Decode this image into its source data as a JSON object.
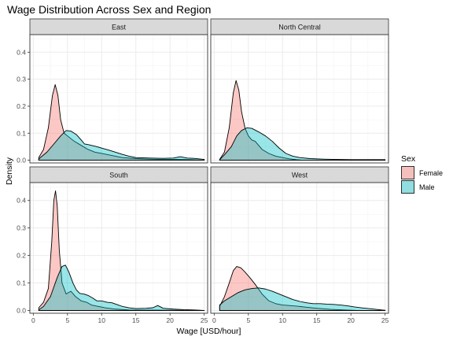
{
  "chart_data": {
    "type": "area",
    "subtype": "density",
    "title": "Wage Distribution Across Sex and Region",
    "xlabel": "Wage [USD/hour]",
    "ylabel": "Density",
    "xlim": [
      -0.5,
      25.5
    ],
    "ylim": [
      -0.01,
      0.465
    ],
    "x_ticks": [
      0,
      5,
      10,
      15,
      20,
      25
    ],
    "y_ticks": [
      0.0,
      0.1,
      0.2,
      0.3,
      0.4
    ],
    "y_tick_labels": [
      "0.0",
      "0.1",
      "0.2",
      "0.3",
      "0.4"
    ],
    "grid": true,
    "facet_layout": "2x2",
    "legend": {
      "title": "Sex",
      "position": "right",
      "entries": [
        {
          "name": "Female",
          "color": "#F8766D"
        },
        {
          "name": "Male",
          "color": "#00BFC4"
        }
      ]
    },
    "panels": [
      {
        "region": "East",
        "series": [
          {
            "name": "Female",
            "color": "#F8766D",
            "points": [
              [
                0.8,
                0.01
              ],
              [
                1.5,
                0.04
              ],
              [
                2.2,
                0.12
              ],
              [
                2.8,
                0.24
              ],
              [
                3.2,
                0.28
              ],
              [
                3.6,
                0.24
              ],
              [
                4.0,
                0.15
              ],
              [
                4.5,
                0.1
              ],
              [
                5.0,
                0.09
              ],
              [
                6.0,
                0.07
              ],
              [
                7.0,
                0.055
              ],
              [
                8.0,
                0.04
              ],
              [
                9.0,
                0.03
              ],
              [
                10.0,
                0.025
              ],
              [
                11.0,
                0.02
              ],
              [
                12.0,
                0.015
              ],
              [
                13.0,
                0.01
              ],
              [
                15.0,
                0.006
              ],
              [
                17.0,
                0.004
              ],
              [
                19.0,
                0.003
              ],
              [
                21.0,
                0.003
              ],
              [
                23.0,
                0.002
              ],
              [
                25.0,
                0.0
              ]
            ]
          },
          {
            "name": "Male",
            "color": "#00BFC4",
            "points": [
              [
                0.8,
                0.005
              ],
              [
                2.0,
                0.03
              ],
              [
                3.0,
                0.06
              ],
              [
                4.0,
                0.09
              ],
              [
                4.8,
                0.11
              ],
              [
                5.5,
                0.108
              ],
              [
                6.3,
                0.095
              ],
              [
                7.0,
                0.075
              ],
              [
                7.5,
                0.06
              ],
              [
                8.0,
                0.058
              ],
              [
                9.0,
                0.052
              ],
              [
                10.0,
                0.045
              ],
              [
                11.0,
                0.038
              ],
              [
                12.0,
                0.03
              ],
              [
                13.0,
                0.022
              ],
              [
                14.0,
                0.015
              ],
              [
                15.0,
                0.01
              ],
              [
                17.0,
                0.008
              ],
              [
                19.0,
                0.007
              ],
              [
                20.5,
                0.008
              ],
              [
                21.5,
                0.013
              ],
              [
                22.5,
                0.008
              ],
              [
                23.5,
                0.007
              ],
              [
                25.0,
                0.003
              ]
            ]
          }
        ]
      },
      {
        "region": "North Central",
        "series": [
          {
            "name": "Female",
            "color": "#F8766D",
            "points": [
              [
                0.8,
                0.003
              ],
              [
                1.5,
                0.03
              ],
              [
                2.2,
                0.12
              ],
              [
                2.8,
                0.25
              ],
              [
                3.2,
                0.295
              ],
              [
                3.6,
                0.26
              ],
              [
                4.0,
                0.18
              ],
              [
                4.5,
                0.12
              ],
              [
                5.0,
                0.09
              ],
              [
                5.5,
                0.075
              ],
              [
                6.0,
                0.07
              ],
              [
                6.5,
                0.055
              ],
              [
                7.0,
                0.04
              ],
              [
                8.0,
                0.025
              ],
              [
                9.0,
                0.015
              ],
              [
                10.0,
                0.01
              ],
              [
                11.0,
                0.005
              ],
              [
                12.0,
                0.002
              ],
              [
                13.0,
                0.0
              ],
              [
                16.0,
                0.0
              ],
              [
                25.0,
                0.0
              ]
            ]
          },
          {
            "name": "Male",
            "color": "#00BFC4",
            "points": [
              [
                0.8,
                0.002
              ],
              [
                1.5,
                0.02
              ],
              [
                2.5,
                0.05
              ],
              [
                3.3,
                0.09
              ],
              [
                4.0,
                0.11
              ],
              [
                4.8,
                0.12
              ],
              [
                5.5,
                0.118
              ],
              [
                6.5,
                0.105
              ],
              [
                7.5,
                0.09
              ],
              [
                8.5,
                0.07
              ],
              [
                9.5,
                0.045
              ],
              [
                10.5,
                0.025
              ],
              [
                11.5,
                0.015
              ],
              [
                12.5,
                0.01
              ],
              [
                14.0,
                0.006
              ],
              [
                16.0,
                0.004
              ],
              [
                18.0,
                0.003
              ],
              [
                20.0,
                0.002
              ],
              [
                22.0,
                0.002
              ],
              [
                24.0,
                0.002
              ],
              [
                25.0,
                0.002
              ]
            ]
          }
        ]
      },
      {
        "region": "South",
        "series": [
          {
            "name": "Female",
            "color": "#F8766D",
            "points": [
              [
                0.8,
                0.01
              ],
              [
                1.5,
                0.03
              ],
              [
                2.2,
                0.08
              ],
              [
                2.7,
                0.25
              ],
              [
                3.0,
                0.4
              ],
              [
                3.25,
                0.435
              ],
              [
                3.5,
                0.38
              ],
              [
                3.8,
                0.22
              ],
              [
                4.2,
                0.1
              ],
              [
                4.8,
                0.06
              ],
              [
                5.5,
                0.07
              ],
              [
                6.2,
                0.05
              ],
              [
                7.0,
                0.035
              ],
              [
                7.8,
                0.03
              ],
              [
                8.5,
                0.02
              ],
              [
                9.5,
                0.015
              ],
              [
                10.5,
                0.01
              ],
              [
                12.0,
                0.005
              ],
              [
                14.0,
                0.002
              ],
              [
                25.0,
                0.0
              ]
            ]
          },
          {
            "name": "Male",
            "color": "#00BFC4",
            "points": [
              [
                0.8,
                0.002
              ],
              [
                1.5,
                0.015
              ],
              [
                2.5,
                0.05
              ],
              [
                3.5,
                0.12
              ],
              [
                4.2,
                0.16
              ],
              [
                4.7,
                0.165
              ],
              [
                5.2,
                0.14
              ],
              [
                5.8,
                0.1
              ],
              [
                6.3,
                0.075
              ],
              [
                6.8,
                0.062
              ],
              [
                7.4,
                0.06
              ],
              [
                8.0,
                0.055
              ],
              [
                8.7,
                0.045
              ],
              [
                9.3,
                0.035
              ],
              [
                10.0,
                0.035
              ],
              [
                10.8,
                0.03
              ],
              [
                11.5,
                0.028
              ],
              [
                12.2,
                0.022
              ],
              [
                13.0,
                0.015
              ],
              [
                14.0,
                0.01
              ],
              [
                15.0,
                0.007
              ],
              [
                16.5,
                0.008
              ],
              [
                17.5,
                0.01
              ],
              [
                18.2,
                0.018
              ],
              [
                19.0,
                0.008
              ],
              [
                20.5,
                0.005
              ],
              [
                22.0,
                0.003
              ],
              [
                23.5,
                0.002
              ],
              [
                25.0,
                0.0
              ]
            ]
          }
        ]
      },
      {
        "region": "West",
        "series": [
          {
            "name": "Female",
            "color": "#F8766D",
            "points": [
              [
                0.8,
                0.015
              ],
              [
                1.5,
                0.05
              ],
              [
                2.2,
                0.1
              ],
              [
                2.8,
                0.145
              ],
              [
                3.3,
                0.16
              ],
              [
                3.9,
                0.155
              ],
              [
                4.5,
                0.14
              ],
              [
                5.2,
                0.12
              ],
              [
                6.0,
                0.095
              ],
              [
                7.0,
                0.06
              ],
              [
                8.0,
                0.035
              ],
              [
                9.0,
                0.025
              ],
              [
                10.0,
                0.02
              ],
              [
                11.0,
                0.018
              ],
              [
                12.0,
                0.016
              ],
              [
                13.5,
                0.012
              ],
              [
                15.0,
                0.008
              ],
              [
                17.0,
                0.004
              ],
              [
                19.0,
                0.002
              ],
              [
                21.0,
                0.0
              ],
              [
                25.0,
                0.0
              ]
            ]
          },
          {
            "name": "Male",
            "color": "#00BFC4",
            "points": [
              [
                0.8,
                0.02
              ],
              [
                1.5,
                0.035
              ],
              [
                2.5,
                0.05
              ],
              [
                3.5,
                0.065
              ],
              [
                4.5,
                0.075
              ],
              [
                5.5,
                0.08
              ],
              [
                6.5,
                0.082
              ],
              [
                7.5,
                0.078
              ],
              [
                8.5,
                0.07
              ],
              [
                9.5,
                0.06
              ],
              [
                10.5,
                0.05
              ],
              [
                11.5,
                0.04
              ],
              [
                12.5,
                0.033
              ],
              [
                13.5,
                0.028
              ],
              [
                14.5,
                0.025
              ],
              [
                15.5,
                0.025
              ],
              [
                16.5,
                0.023
              ],
              [
                17.5,
                0.022
              ],
              [
                18.5,
                0.02
              ],
              [
                19.5,
                0.017
              ],
              [
                20.5,
                0.013
              ],
              [
                21.5,
                0.01
              ],
              [
                23.0,
                0.006
              ],
              [
                24.5,
                0.002
              ],
              [
                25.0,
                0.001
              ]
            ]
          }
        ]
      }
    ]
  }
}
